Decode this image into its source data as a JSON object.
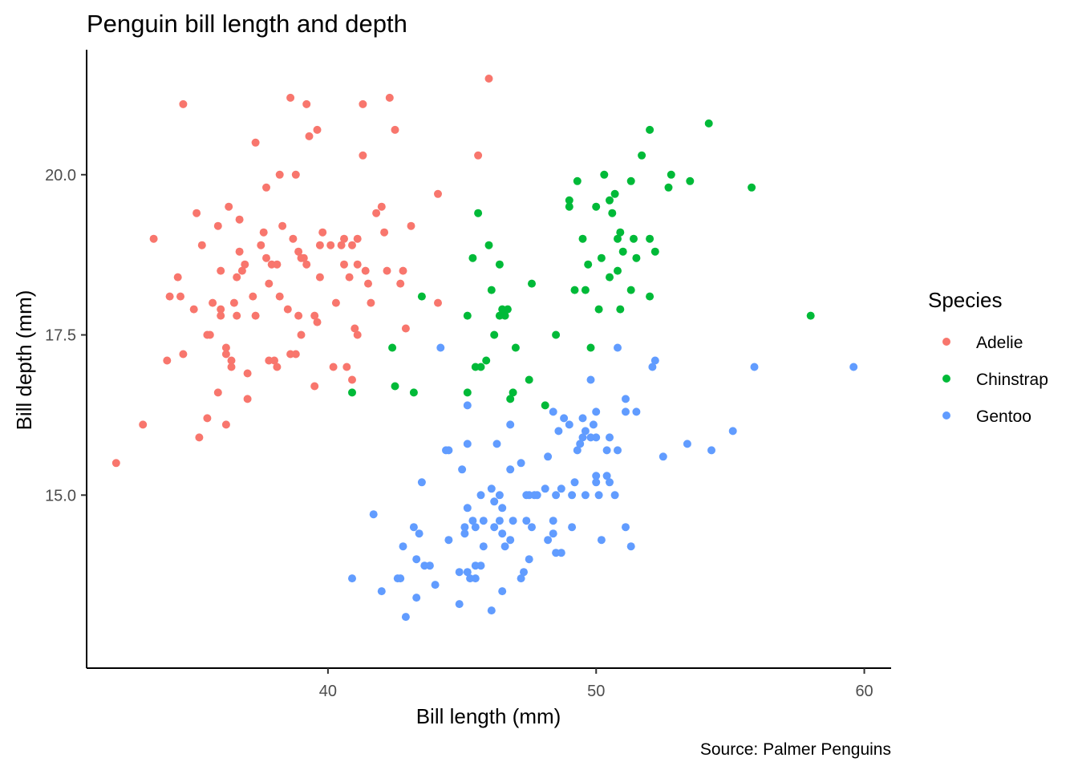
{
  "chart_data": {
    "type": "scatter",
    "title": "Penguin bill length and depth",
    "xlabel": "Bill length (mm)",
    "ylabel": "Bill depth (mm)",
    "caption": "Source: Palmer Penguins",
    "xlim": [
      31.0,
      61.0
    ],
    "ylim": [
      12.3,
      21.95
    ],
    "x_ticks": [
      40,
      50,
      60
    ],
    "y_ticks": [
      15.0,
      17.5,
      20.0
    ],
    "x_tick_labels": [
      "40",
      "50",
      "60"
    ],
    "y_tick_labels": [
      "15.0",
      "17.5",
      "20.0"
    ],
    "grid": false,
    "legend": {
      "title": "Species",
      "position": "right"
    },
    "series": [
      {
        "name": "Adelie",
        "color": "#F8766D",
        "points": [
          [
            32.1,
            15.5
          ],
          [
            33.1,
            16.1
          ],
          [
            33.5,
            19.0
          ],
          [
            34.0,
            17.1
          ],
          [
            34.1,
            18.1
          ],
          [
            34.4,
            18.4
          ],
          [
            34.5,
            18.1
          ],
          [
            34.6,
            21.1
          ],
          [
            34.6,
            17.2
          ],
          [
            35.0,
            17.9
          ],
          [
            35.1,
            19.4
          ],
          [
            35.2,
            15.9
          ],
          [
            35.3,
            18.9
          ],
          [
            35.5,
            16.2
          ],
          [
            35.5,
            17.5
          ],
          [
            35.6,
            17.5
          ],
          [
            35.7,
            18.0
          ],
          [
            35.9,
            19.2
          ],
          [
            35.9,
            16.6
          ],
          [
            36.0,
            17.9
          ],
          [
            36.0,
            17.8
          ],
          [
            36.0,
            18.5
          ],
          [
            36.2,
            16.1
          ],
          [
            36.2,
            17.2
          ],
          [
            36.2,
            17.3
          ],
          [
            36.3,
            19.5
          ],
          [
            36.4,
            17.1
          ],
          [
            36.4,
            17.0
          ],
          [
            36.5,
            18.0
          ],
          [
            36.6,
            17.8
          ],
          [
            36.6,
            18.4
          ],
          [
            36.7,
            18.8
          ],
          [
            36.7,
            19.3
          ],
          [
            36.8,
            18.5
          ],
          [
            36.9,
            18.6
          ],
          [
            37.0,
            16.9
          ],
          [
            37.0,
            16.5
          ],
          [
            37.2,
            18.1
          ],
          [
            37.3,
            17.8
          ],
          [
            37.3,
            20.5
          ],
          [
            37.5,
            18.9
          ],
          [
            37.6,
            19.1
          ],
          [
            37.7,
            18.7
          ],
          [
            37.7,
            19.8
          ],
          [
            37.8,
            18.3
          ],
          [
            37.8,
            17.1
          ],
          [
            37.9,
            18.6
          ],
          [
            38.0,
            17.1
          ],
          [
            38.1,
            18.6
          ],
          [
            38.1,
            17.0
          ],
          [
            38.2,
            18.1
          ],
          [
            38.2,
            20.0
          ],
          [
            38.3,
            19.2
          ],
          [
            38.5,
            17.9
          ],
          [
            38.6,
            21.2
          ],
          [
            38.6,
            17.2
          ],
          [
            38.7,
            19.0
          ],
          [
            38.8,
            17.2
          ],
          [
            38.8,
            20.0
          ],
          [
            38.9,
            17.8
          ],
          [
            38.9,
            18.8
          ],
          [
            39.0,
            17.5
          ],
          [
            39.0,
            18.7
          ],
          [
            39.1,
            18.7
          ],
          [
            39.2,
            21.1
          ],
          [
            39.2,
            18.6
          ],
          [
            39.3,
            20.6
          ],
          [
            39.5,
            16.7
          ],
          [
            39.5,
            17.8
          ],
          [
            39.6,
            17.7
          ],
          [
            39.6,
            20.7
          ],
          [
            39.7,
            18.4
          ],
          [
            39.7,
            18.9
          ],
          [
            39.8,
            19.1
          ],
          [
            40.1,
            18.9
          ],
          [
            40.2,
            17.0
          ],
          [
            40.3,
            18.0
          ],
          [
            40.5,
            18.9
          ],
          [
            40.6,
            18.6
          ],
          [
            40.6,
            19.0
          ],
          [
            40.7,
            17.0
          ],
          [
            40.8,
            18.4
          ],
          [
            40.9,
            16.8
          ],
          [
            40.9,
            18.9
          ],
          [
            41.0,
            17.6
          ],
          [
            41.1,
            17.5
          ],
          [
            41.1,
            19.0
          ],
          [
            41.1,
            18.6
          ],
          [
            41.3,
            20.3
          ],
          [
            41.3,
            21.1
          ],
          [
            41.4,
            18.5
          ],
          [
            41.5,
            18.3
          ],
          [
            41.6,
            18.0
          ],
          [
            41.8,
            19.4
          ],
          [
            42.0,
            19.5
          ],
          [
            42.1,
            19.1
          ],
          [
            42.2,
            18.5
          ],
          [
            42.3,
            21.2
          ],
          [
            42.5,
            20.7
          ],
          [
            42.7,
            18.3
          ],
          [
            42.8,
            18.5
          ],
          [
            42.9,
            17.6
          ],
          [
            43.1,
            19.2
          ],
          [
            44.1,
            19.7
          ],
          [
            44.1,
            18.0
          ],
          [
            45.6,
            20.3
          ],
          [
            46.0,
            21.5
          ]
        ]
      },
      {
        "name": "Chinstrap",
        "color": "#00BA38",
        "points": [
          [
            40.9,
            16.6
          ],
          [
            42.4,
            17.3
          ],
          [
            42.5,
            16.7
          ],
          [
            43.2,
            16.6
          ],
          [
            43.5,
            18.1
          ],
          [
            45.2,
            16.6
          ],
          [
            45.2,
            17.8
          ],
          [
            45.4,
            18.7
          ],
          [
            45.5,
            17.0
          ],
          [
            45.6,
            19.4
          ],
          [
            45.7,
            17.0
          ],
          [
            45.9,
            17.1
          ],
          [
            46.0,
            18.9
          ],
          [
            46.1,
            18.2
          ],
          [
            46.2,
            17.5
          ],
          [
            46.4,
            18.6
          ],
          [
            46.4,
            17.8
          ],
          [
            46.5,
            17.9
          ],
          [
            46.6,
            17.8
          ],
          [
            46.7,
            17.9
          ],
          [
            46.8,
            16.5
          ],
          [
            46.9,
            16.6
          ],
          [
            47.0,
            17.3
          ],
          [
            47.5,
            16.8
          ],
          [
            47.6,
            18.3
          ],
          [
            48.1,
            16.4
          ],
          [
            48.5,
            17.5
          ],
          [
            49.0,
            19.5
          ],
          [
            49.0,
            19.6
          ],
          [
            49.2,
            18.2
          ],
          [
            49.3,
            19.9
          ],
          [
            49.5,
            19.0
          ],
          [
            49.6,
            18.2
          ],
          [
            49.7,
            18.6
          ],
          [
            49.8,
            17.3
          ],
          [
            50.0,
            19.5
          ],
          [
            50.1,
            17.9
          ],
          [
            50.2,
            18.7
          ],
          [
            50.3,
            20.0
          ],
          [
            50.5,
            18.4
          ],
          [
            50.5,
            19.6
          ],
          [
            50.6,
            19.4
          ],
          [
            50.7,
            19.7
          ],
          [
            50.8,
            18.5
          ],
          [
            50.8,
            19.0
          ],
          [
            50.9,
            19.1
          ],
          [
            50.9,
            17.9
          ],
          [
            51.0,
            18.8
          ],
          [
            51.3,
            18.2
          ],
          [
            51.3,
            19.9
          ],
          [
            51.4,
            19.0
          ],
          [
            51.5,
            18.7
          ],
          [
            51.7,
            20.3
          ],
          [
            52.0,
            19.0
          ],
          [
            52.0,
            18.1
          ],
          [
            52.0,
            20.7
          ],
          [
            52.2,
            18.8
          ],
          [
            52.7,
            19.8
          ],
          [
            52.8,
            20.0
          ],
          [
            53.5,
            19.9
          ],
          [
            54.2,
            20.8
          ],
          [
            55.8,
            19.8
          ],
          [
            58.0,
            17.8
          ]
        ]
      },
      {
        "name": "Gentoo",
        "color": "#619CFF",
        "points": [
          [
            40.9,
            13.7
          ],
          [
            41.7,
            14.7
          ],
          [
            42.0,
            13.5
          ],
          [
            42.6,
            13.7
          ],
          [
            42.7,
            13.7
          ],
          [
            42.8,
            14.2
          ],
          [
            42.9,
            13.1
          ],
          [
            43.2,
            14.5
          ],
          [
            43.3,
            13.4
          ],
          [
            43.3,
            14.0
          ],
          [
            43.4,
            14.4
          ],
          [
            43.5,
            15.2
          ],
          [
            43.6,
            13.9
          ],
          [
            43.8,
            13.9
          ],
          [
            44.0,
            13.6
          ],
          [
            44.4,
            15.7
          ],
          [
            44.5,
            14.3
          ],
          [
            44.5,
            15.7
          ],
          [
            44.9,
            13.3
          ],
          [
            44.9,
            13.8
          ],
          [
            45.0,
            15.4
          ],
          [
            45.1,
            14.5
          ],
          [
            45.1,
            14.4
          ],
          [
            45.2,
            13.8
          ],
          [
            45.2,
            14.8
          ],
          [
            45.2,
            15.8
          ],
          [
            45.2,
            16.4
          ],
          [
            45.3,
            13.7
          ],
          [
            45.4,
            14.6
          ],
          [
            45.5,
            13.7
          ],
          [
            45.5,
            13.9
          ],
          [
            45.5,
            14.5
          ],
          [
            45.7,
            13.9
          ],
          [
            45.7,
            15.0
          ],
          [
            45.8,
            14.2
          ],
          [
            45.8,
            14.6
          ],
          [
            46.1,
            15.1
          ],
          [
            46.1,
            13.2
          ],
          [
            46.2,
            14.5
          ],
          [
            46.2,
            14.9
          ],
          [
            46.3,
            15.8
          ],
          [
            46.4,
            14.6
          ],
          [
            46.4,
            15.0
          ],
          [
            46.5,
            14.4
          ],
          [
            46.5,
            13.5
          ],
          [
            46.5,
            14.8
          ],
          [
            46.6,
            14.2
          ],
          [
            46.8,
            14.3
          ],
          [
            46.8,
            15.4
          ],
          [
            46.8,
            16.1
          ],
          [
            46.9,
            14.6
          ],
          [
            47.2,
            13.7
          ],
          [
            47.2,
            15.5
          ],
          [
            47.3,
            13.8
          ],
          [
            47.4,
            14.6
          ],
          [
            47.4,
            15.0
          ],
          [
            47.5,
            14.0
          ],
          [
            47.5,
            15.0
          ],
          [
            47.6,
            14.5
          ],
          [
            47.7,
            15.0
          ],
          [
            47.8,
            15.0
          ],
          [
            48.1,
            15.1
          ],
          [
            48.2,
            14.3
          ],
          [
            48.2,
            15.6
          ],
          [
            48.4,
            14.4
          ],
          [
            48.4,
            14.6
          ],
          [
            48.4,
            16.3
          ],
          [
            48.5,
            14.1
          ],
          [
            48.5,
            15.0
          ],
          [
            48.6,
            16.0
          ],
          [
            48.7,
            14.1
          ],
          [
            48.7,
            15.1
          ],
          [
            48.8,
            16.2
          ],
          [
            49.0,
            16.1
          ],
          [
            49.1,
            14.5
          ],
          [
            49.1,
            15.0
          ],
          [
            49.2,
            15.2
          ],
          [
            49.3,
            15.7
          ],
          [
            49.4,
            15.8
          ],
          [
            49.5,
            15.9
          ],
          [
            49.5,
            16.2
          ],
          [
            49.6,
            15.0
          ],
          [
            49.6,
            16.0
          ],
          [
            49.8,
            15.9
          ],
          [
            49.8,
            16.8
          ],
          [
            49.9,
            16.1
          ],
          [
            50.0,
            15.2
          ],
          [
            50.0,
            15.3
          ],
          [
            50.0,
            15.9
          ],
          [
            50.0,
            16.3
          ],
          [
            50.1,
            15.0
          ],
          [
            50.2,
            14.3
          ],
          [
            50.4,
            15.3
          ],
          [
            50.4,
            15.7
          ],
          [
            50.5,
            15.2
          ],
          [
            50.5,
            15.9
          ],
          [
            50.7,
            15.0
          ],
          [
            50.8,
            15.7
          ],
          [
            50.8,
            17.3
          ],
          [
            51.1,
            14.5
          ],
          [
            51.1,
            16.3
          ],
          [
            51.1,
            16.5
          ],
          [
            51.3,
            14.2
          ],
          [
            51.5,
            16.3
          ],
          [
            52.1,
            17.0
          ],
          [
            52.2,
            17.1
          ],
          [
            52.5,
            15.6
          ],
          [
            53.4,
            15.8
          ],
          [
            54.3,
            15.7
          ],
          [
            55.1,
            16.0
          ],
          [
            55.9,
            17.0
          ],
          [
            59.6,
            17.0
          ],
          [
            44.2,
            17.3
          ]
        ]
      }
    ]
  }
}
